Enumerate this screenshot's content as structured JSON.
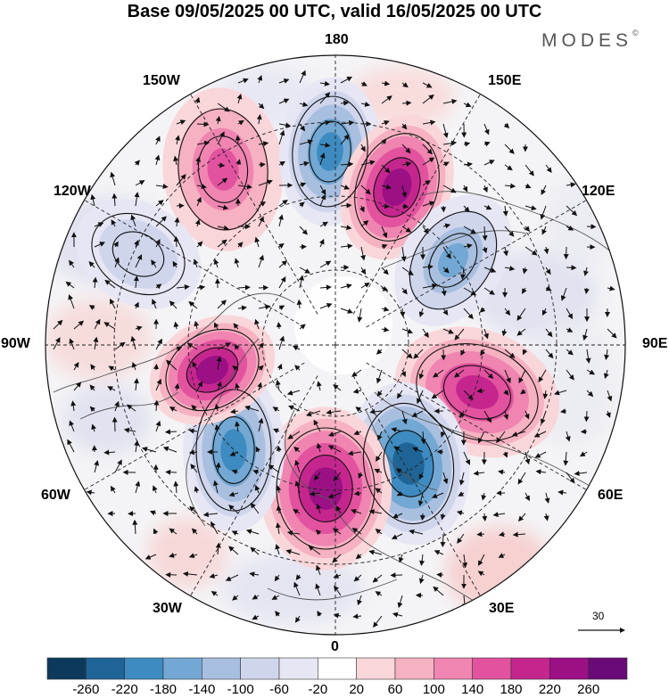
{
  "title": "Base 09/05/2025 00 UTC, valid 16/05/2025 00 UTC",
  "logo": "MODES",
  "logo_mark": "©",
  "longitude_labels": {
    "n180": "180",
    "w150": "150W",
    "e150": "150E",
    "w120": "120W",
    "e120": "120E",
    "w90": "90W",
    "e90": "90E",
    "w60": "60W",
    "e60": "60E",
    "w30": "30W",
    "e30": "30E",
    "s0": "0"
  },
  "vector_scale": {
    "label": "30"
  },
  "colorbar": {
    "ticks": [
      "-260",
      "-220",
      "-180",
      "-140",
      "-100",
      "-60",
      "-20",
      "20",
      "60",
      "100",
      "140",
      "180",
      "220",
      "260"
    ],
    "colors": [
      "#0d3a5c",
      "#1e6496",
      "#3d8bc0",
      "#72a8d3",
      "#a9bfe0",
      "#cfd6ec",
      "#e6e6f4",
      "#ffffff",
      "#f9d6da",
      "#f6b2c2",
      "#ef85b0",
      "#e3529f",
      "#c5268e",
      "#9c1085",
      "#6a0a78"
    ]
  },
  "anomalies": [
    {
      "name": "pos-150w",
      "value": 140
    },
    {
      "name": "neg-180",
      "value": -200
    },
    {
      "name": "pos-160e",
      "value": 220
    },
    {
      "name": "neg-120e",
      "value": -160
    },
    {
      "name": "pos-80e",
      "value": 190
    },
    {
      "name": "neg-40e",
      "value": -230
    },
    {
      "name": "pos-0",
      "value": 240
    },
    {
      "name": "neg-50w",
      "value": -200
    },
    {
      "name": "pos-80w",
      "value": 220
    },
    {
      "name": "neg-120w",
      "value": -100
    }
  ]
}
